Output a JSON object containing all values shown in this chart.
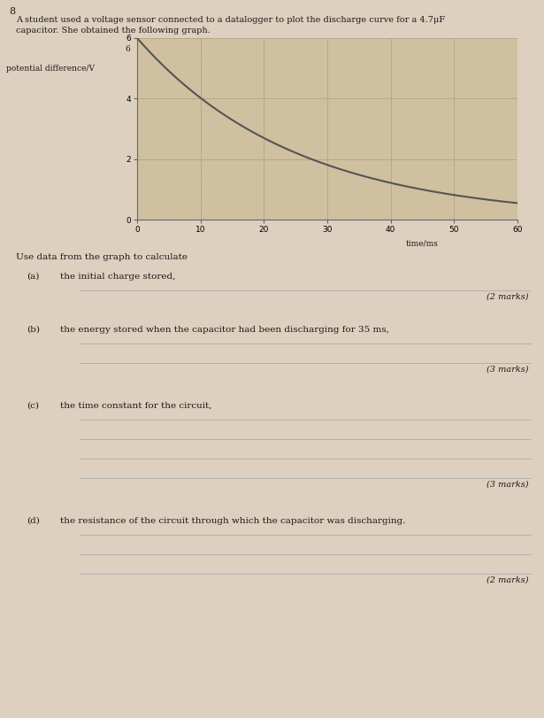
{
  "question_number": "8",
  "intro_line1": "A student used a voltage sensor connected to a datalogger to plot the discharge curve for a 4.7μF",
  "intro_line2": "capacitor. She obtained the following graph.",
  "graph": {
    "xlim": [
      0,
      60
    ],
    "ylim": [
      0,
      6
    ],
    "xticks": [
      0,
      10,
      20,
      30,
      40,
      50,
      60
    ],
    "yticks": [
      0,
      2,
      4,
      6
    ],
    "xlabel": "time/ms",
    "ylabel_text": "potential difference/V",
    "ylabel_tick6": "6",
    "curve_color": "#555555",
    "grid_major_color": "#b8a888",
    "grid_minor_color": "#ccc0a8",
    "grid_alpha": 1.0,
    "bg_color": "#cfc0a0",
    "V0": 6.0,
    "tau": 25.0,
    "curve_lw": 1.5
  },
  "use_data_text": "Use data from the graph to calculate",
  "parts": [
    {
      "label": "(a)",
      "text": "the initial charge stored,",
      "n_lines": 1,
      "marks": "(2 marks)"
    },
    {
      "label": "(b)",
      "text": "the energy stored when the capacitor had been discharging for 35 ms,",
      "n_lines": 2,
      "marks": "(3 marks)"
    },
    {
      "label": "(c)",
      "text": "the time constant for the circuit,",
      "n_lines": 4,
      "marks": "(3 marks)"
    },
    {
      "label": "(d)",
      "text": "the resistance of the circuit through which the capacitor was discharging.",
      "n_lines": 3,
      "marks": "(2 marks)"
    }
  ],
  "page_bg": "#ddd0be",
  "text_color": "#1a1a1a",
  "line_color": "#aaaaaa",
  "font_size_intro": 7.0,
  "font_size_text": 7.5,
  "font_size_marks": 7.0,
  "font_size_qnum": 8.0
}
